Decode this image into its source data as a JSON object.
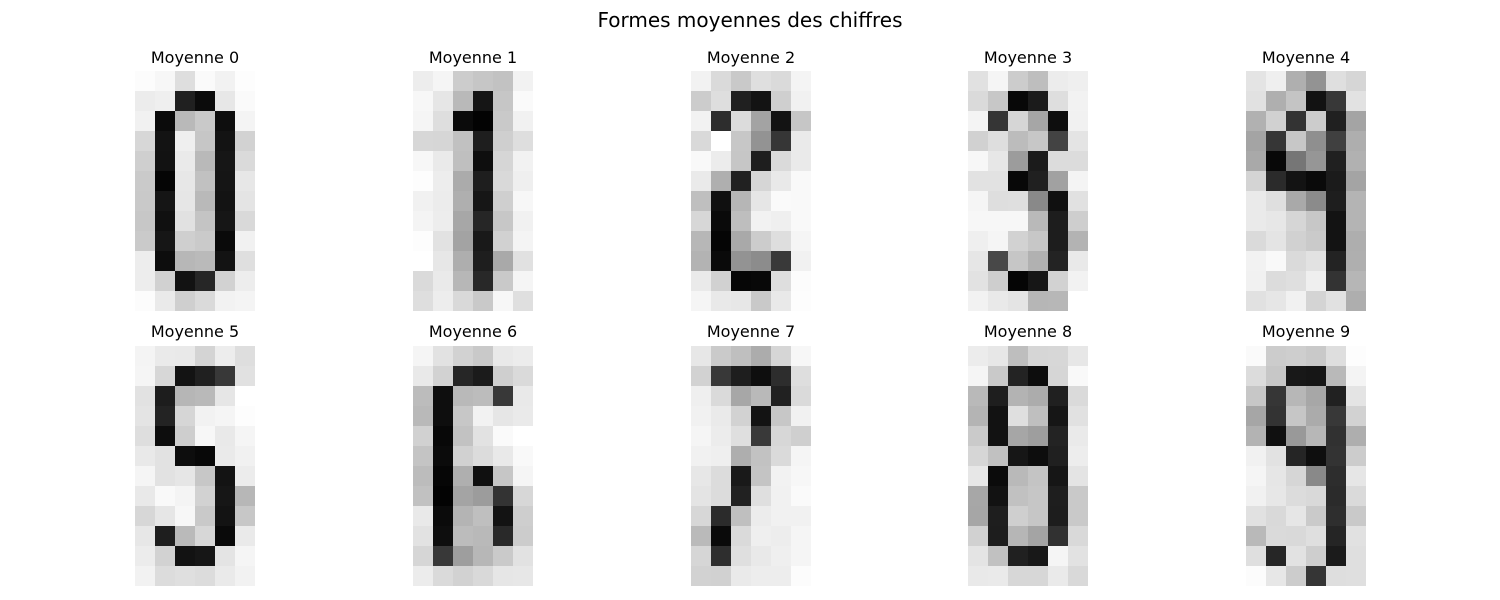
{
  "figure": {
    "title": "Formes moyennes des chiffres"
  },
  "chart_data": {
    "type": "heatmap",
    "colormap": "gray_r",
    "vmin": 0,
    "vmax": 16,
    "grid": false,
    "axes": "off",
    "panels": [
      {
        "title": "Moyenne 0",
        "rows": [
          [
            0.2,
            0.5,
            2.1,
            0.3,
            0.8,
            0.1
          ],
          [
            1.2,
            1.0,
            14.0,
            15.3,
            1.5,
            0.3
          ],
          [
            0.9,
            15.3,
            4.4,
            3.4,
            15.1,
            0.7
          ],
          [
            2.5,
            14.8,
            1.0,
            3.6,
            14.8,
            2.8
          ],
          [
            3.0,
            14.9,
            1.3,
            4.4,
            14.6,
            2.3
          ],
          [
            3.3,
            15.7,
            1.5,
            3.9,
            14.7,
            1.5
          ],
          [
            3.4,
            14.7,
            1.6,
            4.4,
            14.8,
            1.7
          ],
          [
            3.5,
            15.0,
            1.9,
            3.7,
            14.6,
            2.4
          ],
          [
            3.3,
            14.6,
            3.0,
            3.3,
            15.4,
            0.9
          ],
          [
            1.1,
            15.2,
            4.5,
            4.3,
            14.8,
            2.0
          ],
          [
            1.1,
            2.9,
            14.9,
            13.6,
            2.8,
            1.1
          ],
          [
            0.2,
            1.3,
            3.0,
            2.3,
            0.8,
            0.7
          ]
        ]
      },
      {
        "title": "Moyenne 1",
        "rows": [
          [
            1.1,
            0.6,
            3.2,
            3.6,
            3.8,
            0.8
          ],
          [
            0.5,
            1.6,
            4.4,
            14.7,
            3.6,
            0.3
          ],
          [
            0.6,
            2.1,
            15.3,
            15.8,
            3.4,
            0.9
          ],
          [
            2.5,
            2.6,
            3.9,
            14.1,
            3.0,
            2.1
          ],
          [
            0.5,
            1.3,
            4.0,
            15.1,
            2.6,
            0.8
          ],
          [
            0.1,
            1.1,
            5.3,
            14.1,
            2.4,
            1.0
          ],
          [
            0.9,
            1.2,
            5.0,
            14.6,
            3.0,
            0.5
          ],
          [
            0.7,
            1.1,
            5.5,
            13.6,
            3.5,
            0.9
          ],
          [
            0.1,
            1.8,
            5.8,
            14.4,
            2.9,
            0.7
          ],
          [
            0.0,
            1.5,
            5.1,
            14.1,
            5.4,
            1.9
          ],
          [
            2.3,
            1.3,
            4.5,
            13.5,
            3.4,
            0.6
          ],
          [
            2.1,
            1.1,
            2.4,
            3.4,
            0.5,
            2.0
          ]
        ]
      },
      {
        "title": "Moyenne 2",
        "rows": [
          [
            0.8,
            2.3,
            3.4,
            2.0,
            2.3,
            0.7
          ],
          [
            3.2,
            2.1,
            14.0,
            14.8,
            3.0,
            0.9
          ],
          [
            0.8,
            13.2,
            2.2,
            5.8,
            14.8,
            3.6
          ],
          [
            2.4,
            0.0,
            3.5,
            6.8,
            12.6,
            1.3
          ],
          [
            0.4,
            1.2,
            3.6,
            14.1,
            2.3,
            1.3
          ],
          [
            1.3,
            5.0,
            13.9,
            2.6,
            1.4,
            0.4
          ],
          [
            4.0,
            15.0,
            4.6,
            1.6,
            0.3,
            0.4
          ],
          [
            2.5,
            15.4,
            4.1,
            0.8,
            1.0,
            0.4
          ],
          [
            4.5,
            15.7,
            5.4,
            3.2,
            2.1,
            0.6
          ],
          [
            4.8,
            15.4,
            6.8,
            7.2,
            12.4,
            0.9
          ],
          [
            1.3,
            2.9,
            15.6,
            15.5,
            2.1,
            0.2
          ],
          [
            0.6,
            1.4,
            1.5,
            3.4,
            1.4,
            0.1
          ]
        ]
      },
      {
        "title": "Moyenne 3",
        "rows": [
          [
            1.9,
            0.6,
            3.2,
            4.1,
            1.2,
            1.0
          ],
          [
            2.3,
            3.5,
            15.5,
            14.3,
            2.1,
            0.8
          ],
          [
            0.7,
            12.7,
            2.6,
            5.6,
            15.1,
            0.9
          ],
          [
            2.9,
            2.1,
            4.2,
            3.5,
            11.8,
            1.7
          ],
          [
            0.5,
            1.5,
            6.2,
            14.3,
            2.2,
            2.2
          ],
          [
            1.8,
            1.8,
            15.5,
            14.0,
            5.9,
            0.7
          ],
          [
            0.6,
            2.1,
            2.0,
            7.4,
            15.0,
            1.9
          ],
          [
            0.5,
            0.5,
            0.5,
            4.4,
            14.2,
            3.1
          ],
          [
            1.0,
            0.6,
            2.8,
            3.5,
            14.2,
            4.8
          ],
          [
            1.6,
            11.5,
            3.6,
            4.9,
            13.8,
            1.4
          ],
          [
            1.8,
            3.1,
            15.7,
            14.6,
            2.8,
            0.8
          ],
          [
            0.8,
            1.4,
            1.7,
            4.6,
            4.5,
            0.0
          ]
        ]
      },
      {
        "title": "Moyenne 4",
        "rows": [
          [
            1.7,
            1.0,
            5.0,
            6.8,
            2.0,
            2.6
          ],
          [
            1.9,
            5.0,
            3.7,
            14.9,
            12.5,
            1.8
          ],
          [
            4.9,
            2.9,
            12.8,
            3.2,
            14.0,
            5.7
          ],
          [
            5.7,
            12.6,
            3.5,
            7.0,
            12.0,
            5.1
          ],
          [
            5.4,
            15.5,
            8.6,
            6.6,
            14.0,
            4.9
          ],
          [
            2.7,
            13.3,
            14.8,
            15.4,
            14.3,
            5.7
          ],
          [
            1.3,
            2.0,
            5.4,
            7.3,
            14.1,
            4.7
          ],
          [
            1.3,
            1.5,
            2.6,
            3.5,
            14.8,
            4.7
          ],
          [
            2.3,
            1.7,
            2.9,
            3.3,
            14.8,
            5.1
          ],
          [
            0.8,
            0.4,
            2.3,
            1.8,
            13.8,
            5.0
          ],
          [
            0.9,
            2.2,
            2.0,
            1.0,
            12.8,
            4.6
          ],
          [
            1.9,
            1.6,
            0.9,
            2.7,
            1.9,
            5.1
          ]
        ]
      },
      {
        "title": "Moyenne 5",
        "rows": [
          [
            0.7,
            1.3,
            1.4,
            2.7,
            1.1,
            2.1
          ],
          [
            0.6,
            2.5,
            14.8,
            14.0,
            12.5,
            1.9
          ],
          [
            1.8,
            14.2,
            4.6,
            4.4,
            1.6,
            0.0
          ],
          [
            1.7,
            13.8,
            2.6,
            0.8,
            0.6,
            0.1
          ],
          [
            2.1,
            15.2,
            3.1,
            0.5,
            1.4,
            0.6
          ],
          [
            1.4,
            1.8,
            15.2,
            15.5,
            1.3,
            0.9
          ],
          [
            0.6,
            1.8,
            1.6,
            3.5,
            14.8,
            1.2
          ],
          [
            1.4,
            0.4,
            0.7,
            2.8,
            14.6,
            4.5
          ],
          [
            2.5,
            1.6,
            0.5,
            3.4,
            14.8,
            3.5
          ],
          [
            1.5,
            14.1,
            4.3,
            2.5,
            15.4,
            1.3
          ],
          [
            1.2,
            2.8,
            14.9,
            14.6,
            1.7,
            0.6
          ],
          [
            0.8,
            2.2,
            2.0,
            2.2,
            1.3,
            0.8
          ]
        ]
      },
      {
        "title": "Moyenne 6",
        "rows": [
          [
            0.6,
            1.8,
            2.8,
            3.4,
            1.4,
            1.2
          ],
          [
            1.4,
            2.8,
            13.6,
            14.3,
            3.0,
            2.3
          ],
          [
            4.2,
            15.1,
            4.4,
            4.2,
            12.5,
            1.4
          ],
          [
            4.4,
            15.1,
            3.5,
            0.8,
            1.6,
            1.3
          ],
          [
            2.9,
            15.5,
            3.8,
            1.8,
            0.3,
            0.0
          ],
          [
            3.7,
            15.3,
            2.9,
            2.2,
            1.4,
            0.4
          ],
          [
            4.2,
            15.6,
            5.0,
            15.0,
            3.6,
            0.6
          ],
          [
            3.9,
            15.8,
            5.7,
            6.2,
            12.8,
            2.5
          ],
          [
            1.4,
            15.3,
            4.7,
            4.0,
            14.8,
            3.1
          ],
          [
            1.8,
            15.1,
            4.2,
            4.4,
            13.4,
            3.2
          ],
          [
            2.6,
            12.5,
            6.1,
            4.5,
            3.3,
            1.8
          ],
          [
            1.2,
            2.3,
            2.8,
            2.4,
            1.6,
            1.5
          ]
        ]
      },
      {
        "title": "Moyenne 7",
        "rows": [
          [
            1.5,
            3.3,
            4.0,
            5.2,
            2.6,
            0.5
          ],
          [
            2.8,
            12.5,
            14.1,
            15.1,
            13.2,
            2.1
          ],
          [
            1.0,
            2.3,
            5.5,
            4.4,
            13.9,
            2.3
          ],
          [
            0.9,
            1.3,
            2.8,
            14.8,
            3.5,
            0.9
          ],
          [
            0.6,
            1.2,
            2.0,
            12.4,
            2.5,
            3.0
          ],
          [
            0.9,
            1.0,
            5.1,
            3.8,
            2.3,
            0.6
          ],
          [
            1.5,
            2.2,
            14.4,
            3.7,
            0.8,
            0.5
          ],
          [
            1.7,
            2.2,
            13.9,
            2.0,
            0.9,
            0.3
          ],
          [
            2.5,
            13.3,
            4.0,
            1.2,
            0.9,
            0.9
          ],
          [
            4.3,
            15.4,
            2.3,
            1.0,
            1.1,
            0.6
          ],
          [
            2.6,
            13.1,
            2.0,
            1.4,
            1.0,
            0.6
          ],
          [
            2.8,
            2.9,
            1.3,
            1.1,
            1.1,
            0.2
          ]
        ]
      },
      {
        "title": "Moyenne 8",
        "rows": [
          [
            1.2,
            1.5,
            4.1,
            2.6,
            2.5,
            1.5
          ],
          [
            0.6,
            3.4,
            13.8,
            15.2,
            2.6,
            0.4
          ],
          [
            4.4,
            14.1,
            4.8,
            5.2,
            14.0,
            2.3
          ],
          [
            4.7,
            14.9,
            2.0,
            4.0,
            14.6,
            1.9
          ],
          [
            3.3,
            14.9,
            5.6,
            6.1,
            13.8,
            1.3
          ],
          [
            2.6,
            3.9,
            14.6,
            15.2,
            14.0,
            1.1
          ],
          [
            1.5,
            15.3,
            4.4,
            3.7,
            14.6,
            1.7
          ],
          [
            5.5,
            14.9,
            3.9,
            3.6,
            14.1,
            3.4
          ],
          [
            5.6,
            14.1,
            3.0,
            3.6,
            14.2,
            3.4
          ],
          [
            2.9,
            14.2,
            4.6,
            5.7,
            12.9,
            2.4
          ],
          [
            1.7,
            3.9,
            14.0,
            14.5,
            0.6,
            1.8
          ],
          [
            1.4,
            1.3,
            2.5,
            2.5,
            1.3,
            2.4
          ]
        ]
      },
      {
        "title": "Moyenne 9",
        "rows": [
          [
            0.3,
            3.2,
            3.1,
            3.4,
            2.1,
            0.1
          ],
          [
            2.2,
            3.5,
            14.5,
            14.6,
            4.4,
            0.7
          ],
          [
            3.5,
            12.6,
            4.5,
            5.5,
            13.9,
            1.7
          ],
          [
            5.6,
            12.8,
            3.6,
            5.3,
            12.5,
            2.8
          ],
          [
            4.8,
            15.0,
            6.4,
            4.5,
            12.9,
            5.1
          ],
          [
            0.9,
            1.8,
            13.7,
            15.1,
            12.8,
            3.2
          ],
          [
            0.6,
            1.6,
            2.6,
            7.4,
            13.2,
            1.6
          ],
          [
            0.9,
            1.5,
            2.2,
            2.4,
            13.3,
            2.3
          ],
          [
            1.9,
            2.4,
            1.6,
            3.3,
            13.1,
            3.4
          ],
          [
            4.4,
            2.3,
            2.4,
            2.0,
            13.7,
            1.9
          ],
          [
            2.0,
            13.6,
            1.8,
            3.1,
            14.3,
            2.0
          ],
          [
            0.2,
            1.5,
            3.2,
            12.7,
            2.1,
            2.0
          ]
        ]
      }
    ]
  }
}
